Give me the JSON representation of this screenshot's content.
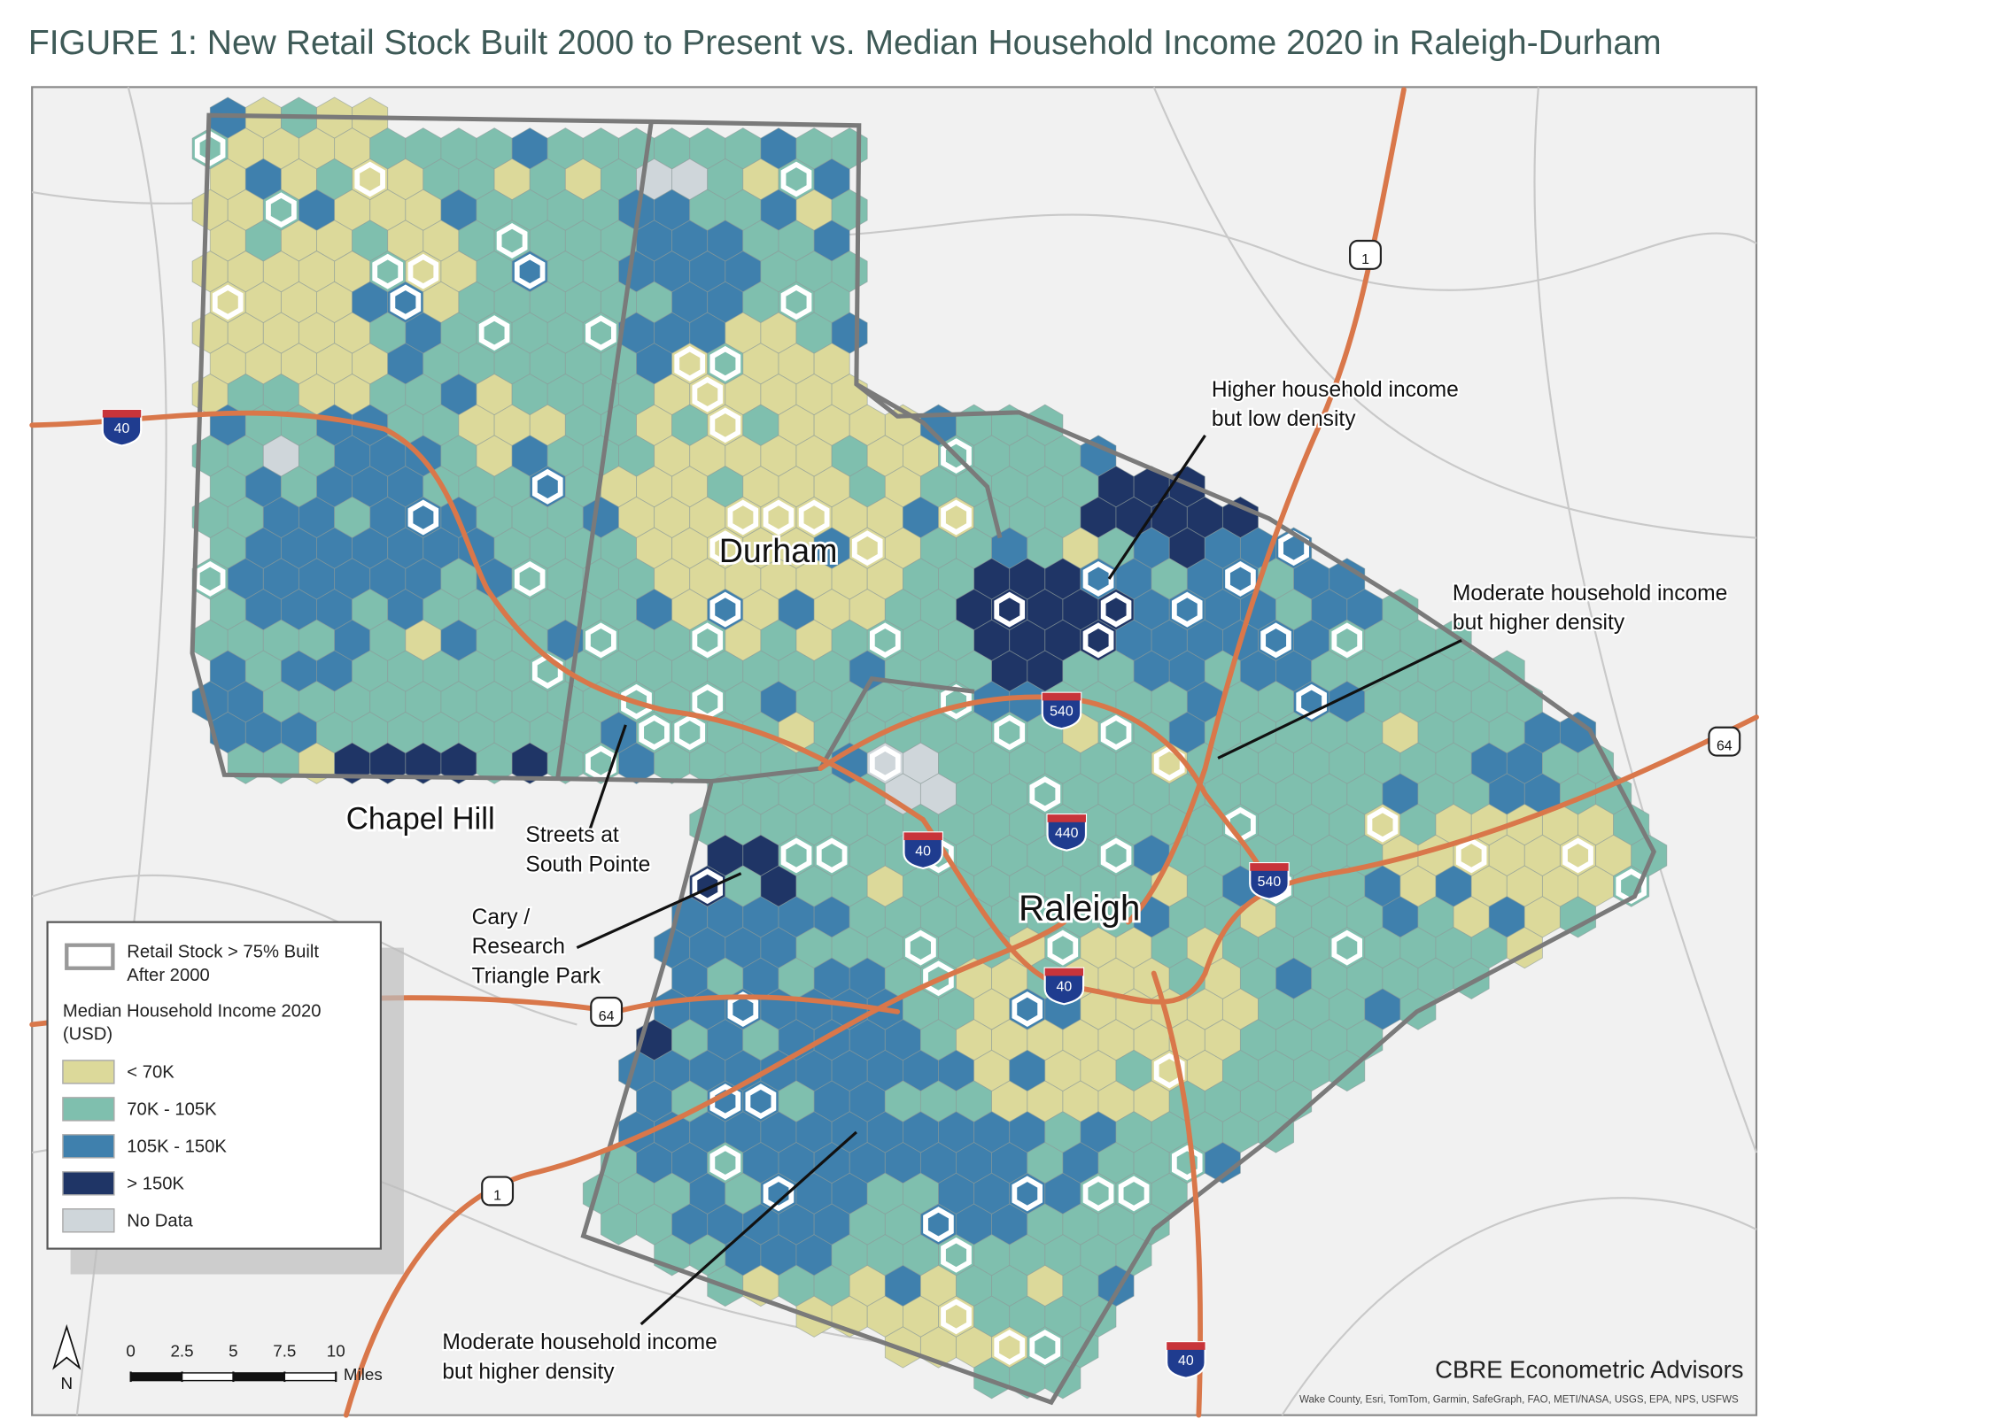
{
  "title": "FIGURE 1: New Retail Stock Built 2000 to Present vs. Median Household Income 2020 in Raleigh-Durham",
  "places": [
    "Durham",
    "Raleigh",
    "Chapel Hill"
  ],
  "annotations": [
    {
      "lines": [
        "Higher household income",
        "but low density"
      ]
    },
    {
      "lines": [
        "Moderate household income",
        "but higher density"
      ]
    },
    {
      "lines": [
        "Streets at",
        "South Pointe"
      ]
    },
    {
      "lines": [
        "Cary /",
        "Research",
        "Triangle Park"
      ]
    },
    {
      "lines": [
        "Moderate household income",
        "but higher density"
      ]
    }
  ],
  "legend": {
    "retail_item": [
      "Retail Stock > 75% Built",
      "After 2000"
    ],
    "income_title": [
      "Median Household Income 2020",
      "(USD)"
    ],
    "classes": [
      {
        "label": "< 70K",
        "color": "#dcd99a"
      },
      {
        "label": "70K - 105K",
        "color": "#7fbfae"
      },
      {
        "label": "105K - 150K",
        "color": "#3f80ad"
      },
      {
        "label": "> 150K",
        "color": "#1f3566"
      },
      {
        "label": "No Data",
        "color": "#cfd6da"
      }
    ]
  },
  "scale": {
    "ticks": [
      0,
      2.5,
      5,
      7.5,
      10
    ],
    "unit": "Miles",
    "north": "N"
  },
  "shields": [
    "40",
    "40",
    "40",
    "40",
    "540",
    "540",
    "440",
    "1",
    "1",
    "64",
    "64"
  ],
  "brand": "CBRE Econometric Advisors",
  "credits": "Wake County, Esri, TomTom, Garmin, SafeGraph, FAO, METI/NASA, USGS, EPA, NPS, USFWS"
}
